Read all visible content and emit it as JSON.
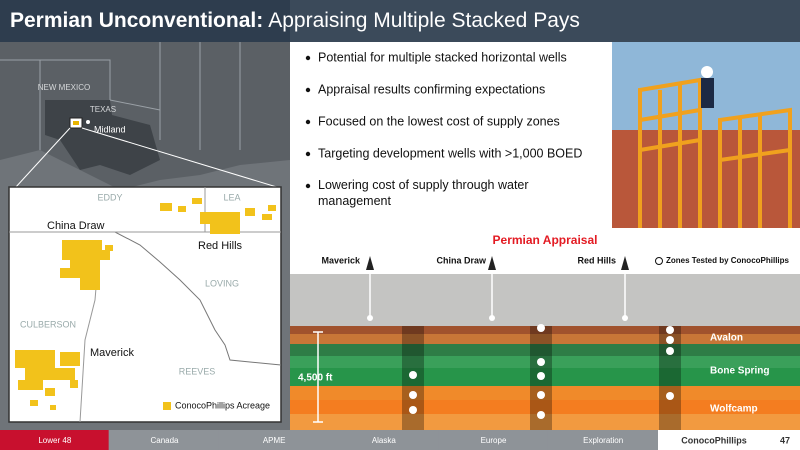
{
  "header": {
    "title_bold": "Permian Unconventional:",
    "title_rest": "Appraising Multiple Stacked Pays"
  },
  "map": {
    "states": [
      "NEW MEXICO",
      "TEXAS"
    ],
    "city": "Midland",
    "counties": [
      "EDDY",
      "LEA",
      "LOVING",
      "CULBERSON",
      "REEVES"
    ],
    "areas": [
      "China Draw",
      "Red Hills",
      "Maverick"
    ],
    "legend": "ConocoPhillips Acreage"
  },
  "bullets": [
    "Potential for multiple stacked horizontal wells",
    "Appraisal results confirming expectations",
    "Focused on the lowest cost of supply zones",
    "Targeting development wells with >1,000 BOED",
    "Lowering cost of supply through water management"
  ],
  "diagram": {
    "title": "Permian Appraisal",
    "wells": [
      "Maverick",
      "China Draw",
      "Red Hills"
    ],
    "legend": "Zones Tested by ConocoPhillips",
    "depth": "4,500 ft",
    "zones": [
      "Avalon",
      "Bone Spring",
      "Wolfcamp"
    ]
  },
  "footer": {
    "tabs": [
      "Lower 48",
      "Canada",
      "APME",
      "Alaska",
      "Europe",
      "Exploration"
    ],
    "logo": "ConocoPhillips",
    "page": 47
  }
}
